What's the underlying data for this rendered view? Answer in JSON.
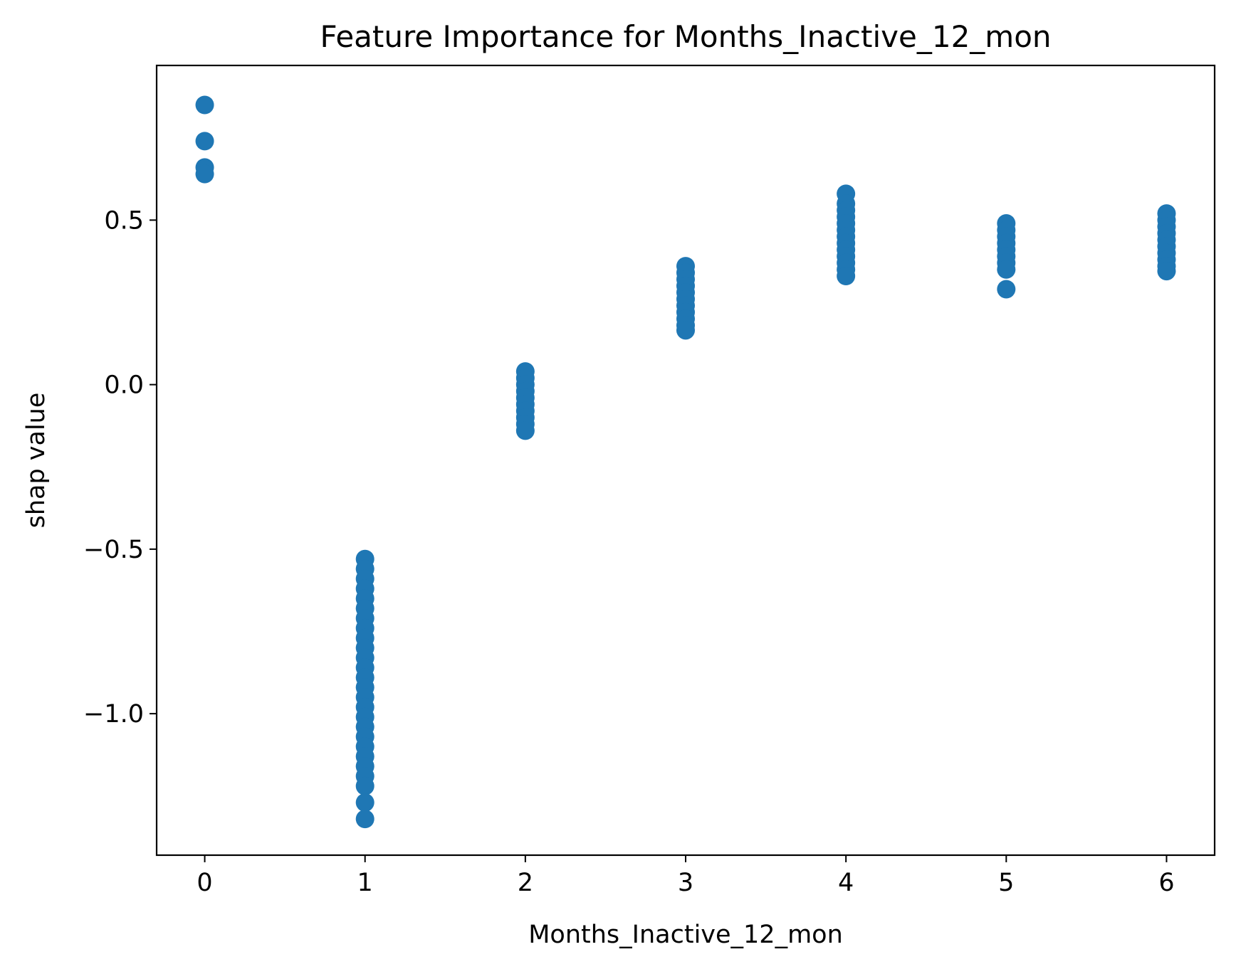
{
  "chart_data": {
    "type": "scatter",
    "title": "Feature Importance for Months_Inactive_12_mon",
    "xlabel": "Months_Inactive_12_mon",
    "ylabel": "shap value",
    "xlim": [
      -0.3,
      6.3
    ],
    "ylim": [
      -1.43,
      0.97
    ],
    "xticks": [
      0,
      1,
      2,
      3,
      4,
      5,
      6
    ],
    "xtick_labels": [
      "0",
      "1",
      "2",
      "3",
      "4",
      "5",
      "6"
    ],
    "yticks": [
      -1.0,
      -0.5,
      0.0,
      0.5
    ],
    "ytick_labels": [
      "−1.0",
      "−0.5",
      "0.0",
      "0.5"
    ],
    "grid": false,
    "legend": "none",
    "color": "#1f77b4",
    "series": [
      {
        "points": [
          {
            "x": 0,
            "y": 0.85
          },
          {
            "x": 0,
            "y": 0.74
          },
          {
            "x": 0,
            "y": 0.66
          },
          {
            "x": 0,
            "y": 0.64
          },
          {
            "x": 1,
            "y": -0.53
          },
          {
            "x": 1,
            "y": -0.56
          },
          {
            "x": 1,
            "y": -0.59
          },
          {
            "x": 1,
            "y": -0.62
          },
          {
            "x": 1,
            "y": -0.65
          },
          {
            "x": 1,
            "y": -0.68
          },
          {
            "x": 1,
            "y": -0.71
          },
          {
            "x": 1,
            "y": -0.74
          },
          {
            "x": 1,
            "y": -0.77
          },
          {
            "x": 1,
            "y": -0.8
          },
          {
            "x": 1,
            "y": -0.83
          },
          {
            "x": 1,
            "y": -0.86
          },
          {
            "x": 1,
            "y": -0.89
          },
          {
            "x": 1,
            "y": -0.92
          },
          {
            "x": 1,
            "y": -0.95
          },
          {
            "x": 1,
            "y": -0.98
          },
          {
            "x": 1,
            "y": -1.01
          },
          {
            "x": 1,
            "y": -1.04
          },
          {
            "x": 1,
            "y": -1.07
          },
          {
            "x": 1,
            "y": -1.1
          },
          {
            "x": 1,
            "y": -1.13
          },
          {
            "x": 1,
            "y": -1.16
          },
          {
            "x": 1,
            "y": -1.19
          },
          {
            "x": 1,
            "y": -1.22
          },
          {
            "x": 1,
            "y": -1.27
          },
          {
            "x": 1,
            "y": -1.32
          },
          {
            "x": 2,
            "y": 0.04
          },
          {
            "x": 2,
            "y": 0.02
          },
          {
            "x": 2,
            "y": 0.0
          },
          {
            "x": 2,
            "y": -0.02
          },
          {
            "x": 2,
            "y": -0.04
          },
          {
            "x": 2,
            "y": -0.06
          },
          {
            "x": 2,
            "y": -0.08
          },
          {
            "x": 2,
            "y": -0.1
          },
          {
            "x": 2,
            "y": -0.12
          },
          {
            "x": 2,
            "y": -0.14
          },
          {
            "x": 3,
            "y": 0.36
          },
          {
            "x": 3,
            "y": 0.34
          },
          {
            "x": 3,
            "y": 0.32
          },
          {
            "x": 3,
            "y": 0.3
          },
          {
            "x": 3,
            "y": 0.28
          },
          {
            "x": 3,
            "y": 0.26
          },
          {
            "x": 3,
            "y": 0.24
          },
          {
            "x": 3,
            "y": 0.22
          },
          {
            "x": 3,
            "y": 0.2
          },
          {
            "x": 3,
            "y": 0.18
          },
          {
            "x": 3,
            "y": 0.165
          },
          {
            "x": 4,
            "y": 0.58
          },
          {
            "x": 4,
            "y": 0.55
          },
          {
            "x": 4,
            "y": 0.53
          },
          {
            "x": 4,
            "y": 0.51
          },
          {
            "x": 4,
            "y": 0.49
          },
          {
            "x": 4,
            "y": 0.47
          },
          {
            "x": 4,
            "y": 0.45
          },
          {
            "x": 4,
            "y": 0.43
          },
          {
            "x": 4,
            "y": 0.41
          },
          {
            "x": 4,
            "y": 0.39
          },
          {
            "x": 4,
            "y": 0.37
          },
          {
            "x": 4,
            "y": 0.35
          },
          {
            "x": 4,
            "y": 0.33
          },
          {
            "x": 5,
            "y": 0.49
          },
          {
            "x": 5,
            "y": 0.47
          },
          {
            "x": 5,
            "y": 0.45
          },
          {
            "x": 5,
            "y": 0.43
          },
          {
            "x": 5,
            "y": 0.41
          },
          {
            "x": 5,
            "y": 0.39
          },
          {
            "x": 5,
            "y": 0.37
          },
          {
            "x": 5,
            "y": 0.35
          },
          {
            "x": 5,
            "y": 0.29
          },
          {
            "x": 6,
            "y": 0.52
          },
          {
            "x": 6,
            "y": 0.5
          },
          {
            "x": 6,
            "y": 0.48
          },
          {
            "x": 6,
            "y": 0.46
          },
          {
            "x": 6,
            "y": 0.44
          },
          {
            "x": 6,
            "y": 0.42
          },
          {
            "x": 6,
            "y": 0.4
          },
          {
            "x": 6,
            "y": 0.38
          },
          {
            "x": 6,
            "y": 0.36
          },
          {
            "x": 6,
            "y": 0.345
          }
        ]
      }
    ]
  }
}
